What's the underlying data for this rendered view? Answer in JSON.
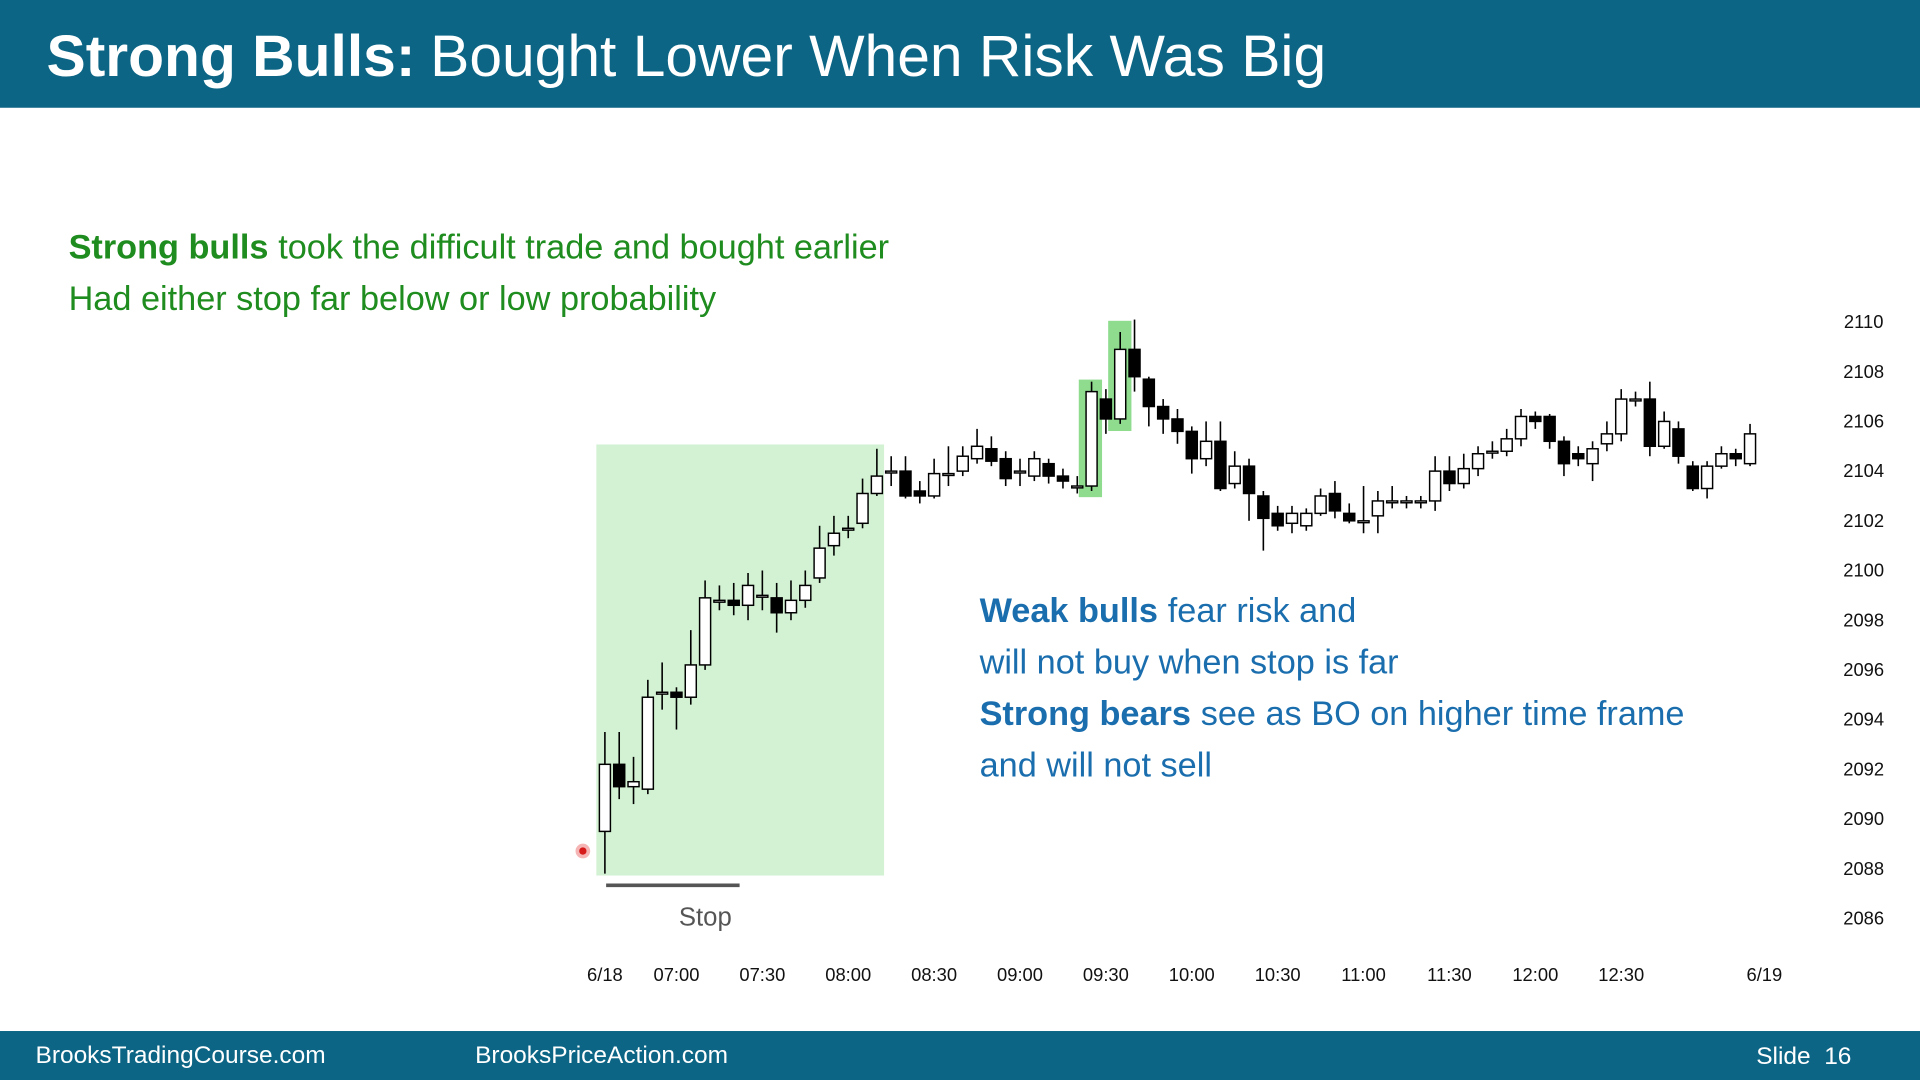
{
  "header": {
    "title_bold": "Strong Bulls:",
    "title_rest": "Bought Lower When Risk Was Big"
  },
  "annotations": [
    {
      "color": "#1e8c1e",
      "lines": [
        [
          {
            "text": "Strong bulls",
            "bold": true
          },
          {
            "text": "took the difficult trade and bought earlier",
            "bold": false
          }
        ],
        [
          {
            "text": "Had either stop far below or low probability",
            "bold": false
          }
        ]
      ]
    },
    {
      "color": "#1a6eae",
      "lines": [
        [
          {
            "text": "Weak bulls",
            "bold": true
          },
          {
            "text": "fear risk and",
            "bold": false
          }
        ],
        [
          {
            "text": "will not buy when stop is far",
            "bold": false
          }
        ],
        [
          {
            "text": "Strong bears",
            "bold": true
          },
          {
            "text": "see as BO on higher time frame",
            "bold": false
          }
        ],
        [
          {
            "text": "and will not sell",
            "bold": false
          }
        ]
      ]
    }
  ],
  "stop_label": "Stop",
  "footer": {
    "left": "BrooksTradingCourse.com",
    "middle": "BrooksPriceAction.com",
    "right": "Slide  16"
  },
  "chart_data": {
    "type": "candlestick",
    "ylim": [
      2086,
      2110
    ],
    "yticks": [
      2086,
      2088,
      2090,
      2092,
      2094,
      2096,
      2098,
      2100,
      2102,
      2104,
      2106,
      2108,
      2110
    ],
    "xticks": [
      {
        "value": 0,
        "label": "6/18"
      },
      {
        "value": 5,
        "label": "07:00"
      },
      {
        "value": 11,
        "label": "07:30"
      },
      {
        "value": 17,
        "label": "08:00"
      },
      {
        "value": 23,
        "label": "08:30"
      },
      {
        "value": 29,
        "label": "09:00"
      },
      {
        "value": 35,
        "label": "09:30"
      },
      {
        "value": 41,
        "label": "10:00"
      },
      {
        "value": 47,
        "label": "10:30"
      },
      {
        "value": 53,
        "label": "11:00"
      },
      {
        "value": 59,
        "label": "11:30"
      },
      {
        "value": 65,
        "label": "12:00"
      },
      {
        "value": 71,
        "label": "12:30"
      },
      {
        "value": 81,
        "label": "6/19"
      }
    ],
    "up_color": "#ffffff",
    "down_color": "#000000",
    "candles": [
      [
        2089.5,
        2093.5,
        2087.8,
        2092.2
      ],
      [
        2092.2,
        2093.5,
        2090.8,
        2091.3
      ],
      [
        2091.3,
        2092.5,
        2090.6,
        2091.5
      ],
      [
        2091.2,
        2095.6,
        2091.0,
        2094.9
      ],
      [
        2095.1,
        2096.3,
        2094.4,
        2095.1
      ],
      [
        2095.1,
        2095.3,
        2093.6,
        2094.9
      ],
      [
        2094.9,
        2097.6,
        2094.6,
        2096.2
      ],
      [
        2096.2,
        2099.6,
        2096.0,
        2098.9
      ],
      [
        2098.8,
        2099.4,
        2098.4,
        2098.8
      ],
      [
        2098.8,
        2099.5,
        2098.2,
        2098.6
      ],
      [
        2098.6,
        2099.9,
        2098.0,
        2099.4
      ],
      [
        2099.0,
        2100.0,
        2098.4,
        2099.0
      ],
      [
        2098.9,
        2099.5,
        2097.5,
        2098.3
      ],
      [
        2098.3,
        2099.6,
        2098.0,
        2098.8
      ],
      [
        2098.8,
        2100.0,
        2098.5,
        2099.4
      ],
      [
        2099.7,
        2101.8,
        2099.5,
        2100.9
      ],
      [
        2101.0,
        2102.2,
        2100.6,
        2101.5
      ],
      [
        2101.7,
        2102.2,
        2101.3,
        2101.7
      ],
      [
        2101.9,
        2103.7,
        2101.7,
        2103.1
      ],
      [
        2103.1,
        2104.9,
        2103.0,
        2103.8
      ],
      [
        2104.0,
        2104.6,
        2103.4,
        2104.0
      ],
      [
        2104.0,
        2104.6,
        2102.9,
        2103.0
      ],
      [
        2103.2,
        2103.6,
        2102.7,
        2103.0
      ],
      [
        2103.0,
        2104.5,
        2102.9,
        2103.9
      ],
      [
        2103.9,
        2105.0,
        2103.4,
        2103.9
      ],
      [
        2104.0,
        2105.0,
        2103.8,
        2104.6
      ],
      [
        2104.5,
        2105.7,
        2104.3,
        2105.0
      ],
      [
        2104.9,
        2105.4,
        2104.2,
        2104.4
      ],
      [
        2104.5,
        2104.8,
        2103.4,
        2103.7
      ],
      [
        2104.0,
        2104.5,
        2103.4,
        2104.0
      ],
      [
        2103.8,
        2104.8,
        2103.6,
        2104.5
      ],
      [
        2104.3,
        2104.5,
        2103.5,
        2103.8
      ],
      [
        2103.8,
        2104.1,
        2103.3,
        2103.6
      ],
      [
        2103.4,
        2103.8,
        2103.1,
        2103.4
      ],
      [
        2103.4,
        2107.6,
        2103.2,
        2107.2
      ],
      [
        2106.9,
        2107.3,
        2105.5,
        2106.1
      ],
      [
        2106.1,
        2109.6,
        2105.9,
        2108.9
      ],
      [
        2108.9,
        2110.1,
        2107.2,
        2107.8
      ],
      [
        2107.7,
        2107.8,
        2105.8,
        2106.6
      ],
      [
        2106.6,
        2106.9,
        2105.5,
        2106.1
      ],
      [
        2106.1,
        2106.5,
        2105.1,
        2105.6
      ],
      [
        2105.6,
        2105.8,
        2103.9,
        2104.5
      ],
      [
        2104.5,
        2106.0,
        2104.2,
        2105.2
      ],
      [
        2105.2,
        2106.0,
        2103.2,
        2103.3
      ],
      [
        2103.5,
        2104.8,
        2103.3,
        2104.2
      ],
      [
        2104.2,
        2104.5,
        2102.0,
        2103.1
      ],
      [
        2103.0,
        2103.2,
        2100.8,
        2102.1
      ],
      [
        2102.3,
        2102.6,
        2101.6,
        2101.8
      ],
      [
        2101.9,
        2102.6,
        2101.5,
        2102.3
      ],
      [
        2101.8,
        2102.5,
        2101.6,
        2102.3
      ],
      [
        2102.3,
        2103.3,
        2102.2,
        2103.0
      ],
      [
        2103.1,
        2103.6,
        2102.1,
        2102.4
      ],
      [
        2102.3,
        2102.7,
        2101.9,
        2102.0
      ],
      [
        2102.0,
        2103.4,
        2101.5,
        2102.0
      ],
      [
        2102.2,
        2103.2,
        2101.5,
        2102.8
      ],
      [
        2102.8,
        2103.4,
        2102.5,
        2102.8
      ],
      [
        2102.8,
        2103.0,
        2102.5,
        2102.8
      ],
      [
        2102.8,
        2103.0,
        2102.5,
        2102.8
      ],
      [
        2102.8,
        2104.6,
        2102.4,
        2104.0
      ],
      [
        2104.0,
        2104.6,
        2103.2,
        2103.5
      ],
      [
        2103.5,
        2104.7,
        2103.3,
        2104.1
      ],
      [
        2104.1,
        2105.0,
        2103.8,
        2104.7
      ],
      [
        2104.8,
        2105.2,
        2104.5,
        2104.8
      ],
      [
        2104.8,
        2105.7,
        2104.6,
        2105.3
      ],
      [
        2105.3,
        2106.5,
        2105.0,
        2106.2
      ],
      [
        2106.2,
        2106.4,
        2105.7,
        2106.0
      ],
      [
        2106.2,
        2106.3,
        2104.9,
        2105.2
      ],
      [
        2105.2,
        2105.4,
        2103.8,
        2104.3
      ],
      [
        2104.7,
        2105.0,
        2104.2,
        2104.5
      ],
      [
        2104.3,
        2105.2,
        2103.6,
        2104.9
      ],
      [
        2105.1,
        2106.0,
        2104.8,
        2105.5
      ],
      [
        2105.5,
        2107.3,
        2105.2,
        2106.9
      ],
      [
        2106.9,
        2107.2,
        2106.6,
        2106.9
      ],
      [
        2106.9,
        2107.6,
        2104.6,
        2105.0
      ],
      [
        2105.0,
        2106.4,
        2104.9,
        2106.0
      ],
      [
        2105.7,
        2106.0,
        2104.3,
        2104.6
      ],
      [
        2104.2,
        2104.4,
        2103.2,
        2103.3
      ],
      [
        2103.3,
        2104.4,
        2102.9,
        2104.2
      ],
      [
        2104.2,
        2105.0,
        2104.1,
        2104.7
      ],
      [
        2104.7,
        2104.9,
        2104.2,
        2104.5
      ],
      [
        2104.3,
        2105.9,
        2104.2,
        2105.5
      ]
    ]
  }
}
